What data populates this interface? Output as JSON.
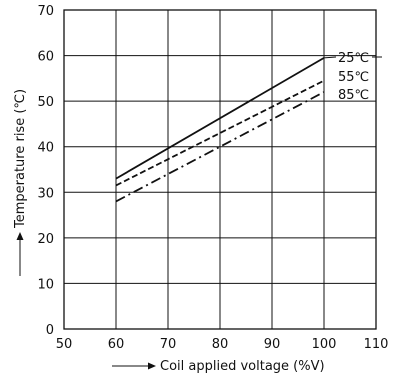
{
  "chart_data": {
    "type": "line",
    "xlabel": "Coil applied voltage (%V)",
    "ylabel": "Temperature rise (℃)",
    "xlim": [
      50,
      110
    ],
    "ylim": [
      0,
      70
    ],
    "x_ticks": [
      "50",
      "60",
      "70",
      "80",
      "90",
      "100",
      "110"
    ],
    "y_ticks": [
      "0",
      "10",
      "20",
      "30",
      "40",
      "50",
      "60",
      "70"
    ],
    "grid": true,
    "series": [
      {
        "name": "25℃",
        "style": "solid",
        "x": [
          60,
          100
        ],
        "y": [
          33,
          59.5
        ]
      },
      {
        "name": "55℃",
        "style": "dashed",
        "x": [
          60,
          100
        ],
        "y": [
          31.5,
          54.5
        ]
      },
      {
        "name": "85℃",
        "style": "dashdot",
        "x": [
          60,
          100
        ],
        "y": [
          28,
          52
        ]
      }
    ]
  }
}
